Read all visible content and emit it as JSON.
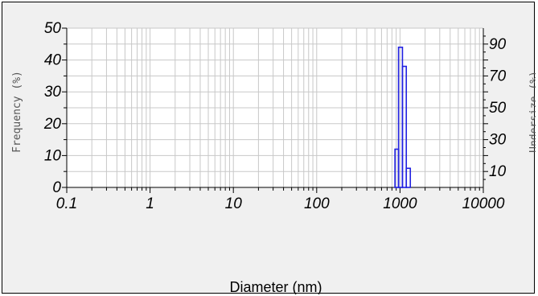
{
  "chart_data": {
    "type": "bar",
    "x_scale": "log",
    "xlim": [
      0.1,
      10000
    ],
    "x_ticks": [
      0.1,
      1,
      10,
      100,
      1000,
      10000
    ],
    "x_tick_labels": [
      "0.1",
      "1",
      "10",
      "100",
      "1000",
      "10000"
    ],
    "xlabel": "Diameter (nm)",
    "ylabel": "Frequency (%)",
    "ylim": [
      0,
      50
    ],
    "y_ticks": [
      0,
      10,
      20,
      30,
      40,
      50
    ],
    "y_tick_labels": [
      "0",
      "10",
      "20",
      "30",
      "40",
      "50"
    ],
    "y2label": "Undersize (%)",
    "y2lim": [
      0,
      100
    ],
    "y2_ticks": [
      10,
      30,
      50,
      70,
      90
    ],
    "y2_tick_labels": [
      "10",
      "30",
      "50",
      "70",
      "90"
    ],
    "grid": true,
    "series": [
      {
        "bins": [
          {
            "from": 870,
            "to": 960,
            "value": 12
          },
          {
            "from": 960,
            "to": 1070,
            "value": 44
          },
          {
            "from": 1070,
            "to": 1190,
            "value": 38
          },
          {
            "from": 1190,
            "to": 1330,
            "value": 6
          }
        ]
      }
    ],
    "colors": {
      "bars": "#2020e0",
      "grid": "#c8c8c8",
      "background": "#f0f0f0",
      "plot": "#ffffff"
    }
  }
}
